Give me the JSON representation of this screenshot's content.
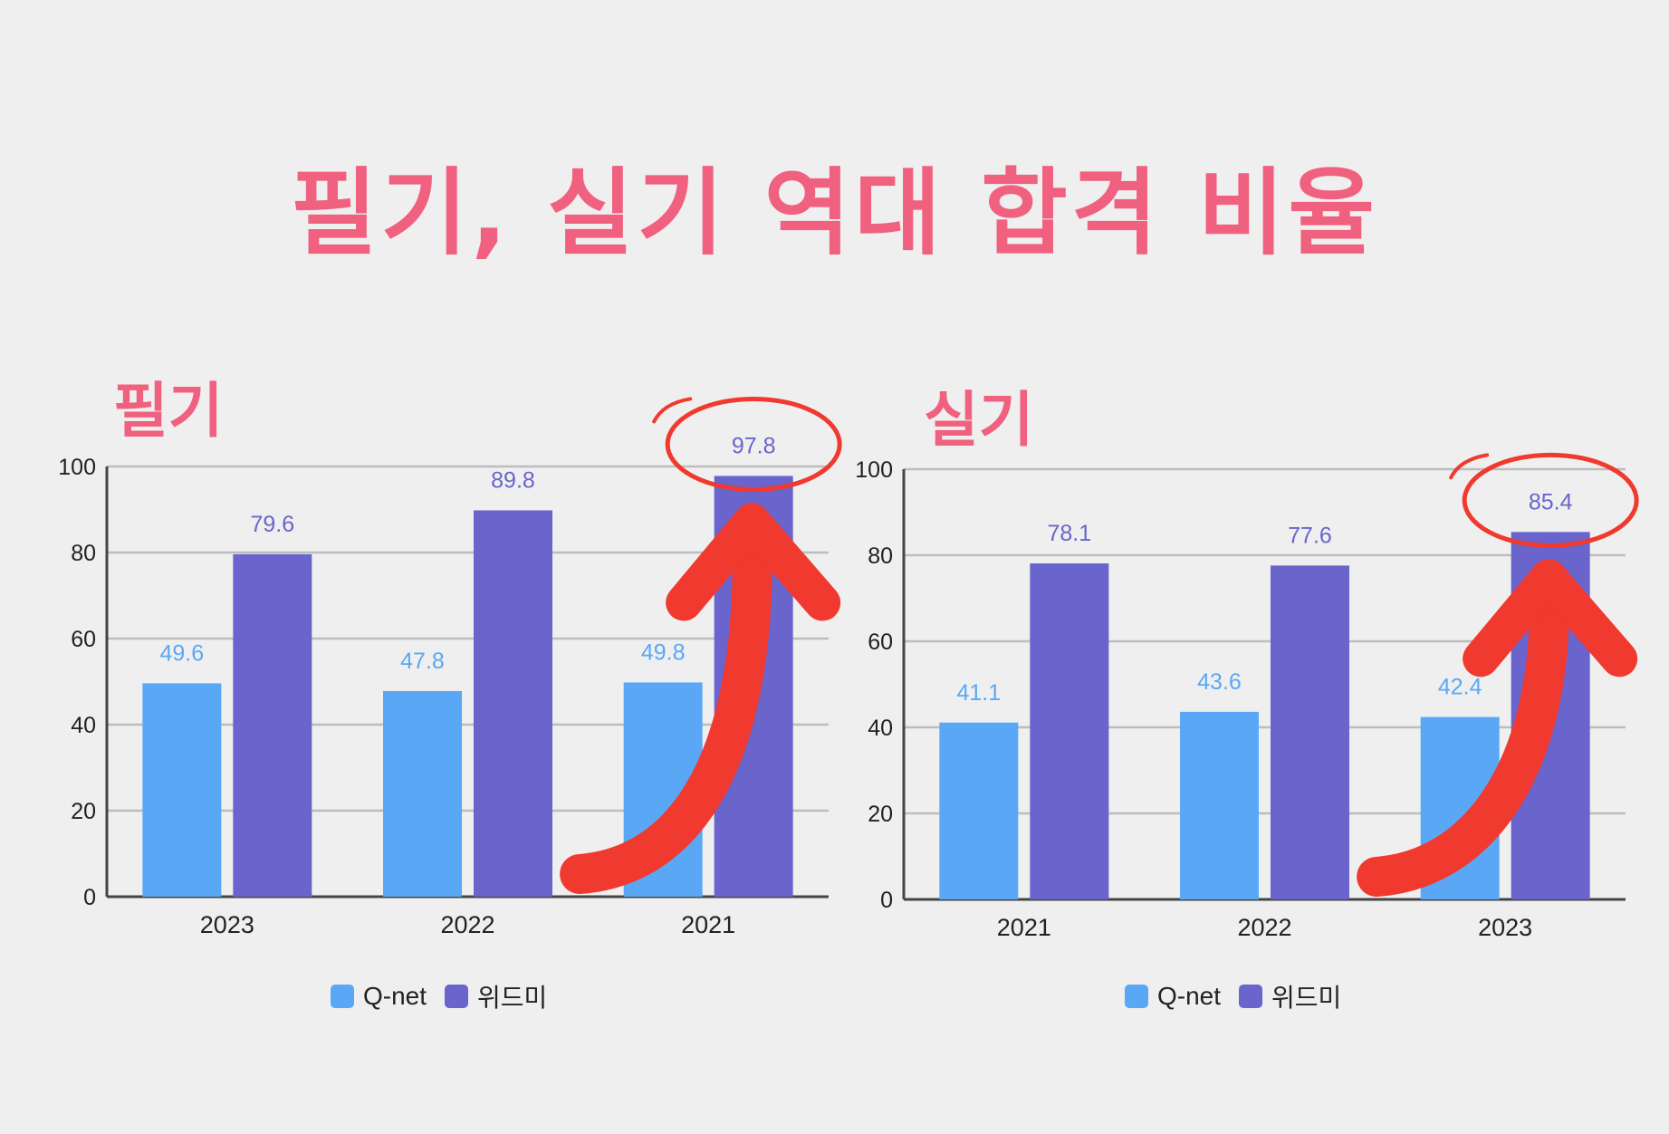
{
  "title": "필기, 실기 역대 합격 비율",
  "colors": {
    "title": "#f0607f",
    "qnet": "#5aa8f5",
    "widmi": "#6965cc",
    "annotation": "#f0392f"
  },
  "chart_data": [
    {
      "type": "bar",
      "title": "필기",
      "categories": [
        "2023",
        "2022",
        "2021"
      ],
      "series": [
        {
          "name": "Q-net",
          "values": [
            49.6,
            47.8,
            49.8
          ]
        },
        {
          "name": "위드미",
          "values": [
            79.6,
            89.8,
            97.8
          ]
        }
      ],
      "ylim": [
        0,
        100
      ],
      "yticks": [
        "0",
        "20",
        "40",
        "60",
        "80",
        "100"
      ],
      "grid": true,
      "legend": "bottom",
      "highlight": {
        "series": 1,
        "index": 2
      }
    },
    {
      "type": "bar",
      "title": "실기",
      "categories": [
        "2021",
        "2022",
        "2023"
      ],
      "series": [
        {
          "name": "Q-net",
          "values": [
            41.1,
            43.6,
            42.4
          ]
        },
        {
          "name": "위드미",
          "values": [
            78.1,
            77.6,
            85.4
          ]
        }
      ],
      "ylim": [
        0,
        100
      ],
      "yticks": [
        "0",
        "20",
        "40",
        "60",
        "80",
        "100"
      ],
      "grid": true,
      "legend": "bottom",
      "highlight": {
        "series": 1,
        "index": 2
      }
    }
  ]
}
